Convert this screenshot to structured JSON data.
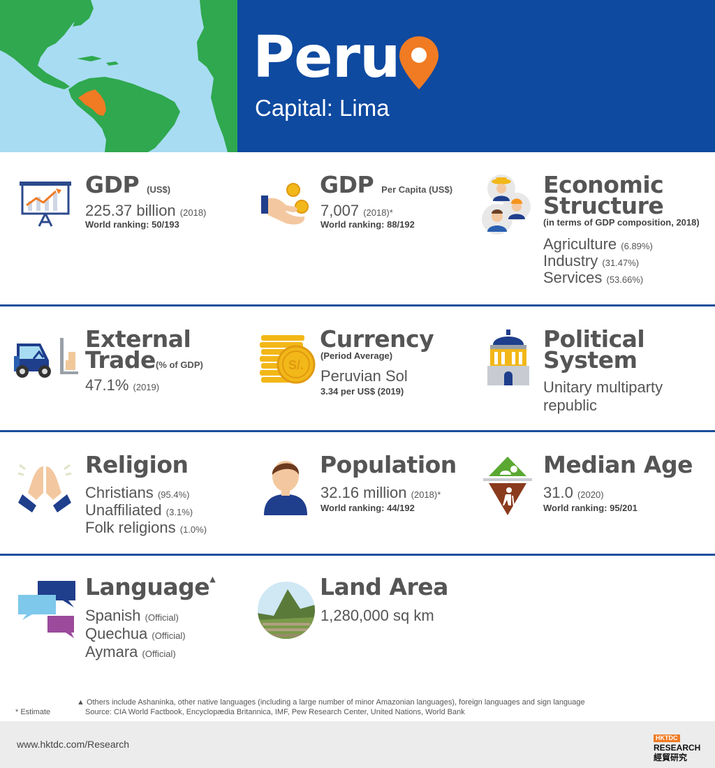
{
  "header": {
    "title": "Peru",
    "capital": "Capital: Lima"
  },
  "colors": {
    "blue": "#0e4aa0",
    "orange": "#f07b23",
    "land": "#2fa84f",
    "sea": "#a8dcf2"
  },
  "gdp": {
    "title": "GDP",
    "unit": "(US$)",
    "value": "225.37 billion",
    "year": "(2018)",
    "ranking": "World ranking: 50/193"
  },
  "gdp_pc": {
    "title": "GDP",
    "unit": "Per Capita (US$)",
    "value": "7,007",
    "year": "(2018)*",
    "ranking": "World ranking: 88/192"
  },
  "econ": {
    "title1": "Economic",
    "title2": "Structure",
    "sub": "(in terms of GDP composition, 2018)",
    "items": [
      {
        "label": "Agriculture",
        "pct": "(6.89%)"
      },
      {
        "label": "Industry",
        "pct": "(31.47%)"
      },
      {
        "label": "Services",
        "pct": "(53.66%)"
      }
    ]
  },
  "trade": {
    "title1": "External",
    "title2": "Trade",
    "unit": "(% of GDP)",
    "value": "47.1%",
    "year": "(2019)"
  },
  "currency": {
    "title": "Currency",
    "sub": "(Period Average)",
    "value": "Peruvian Sol",
    "rate": "3.34 per US$ (2019)",
    "coin_label": "S/."
  },
  "political": {
    "title1": "Political",
    "title2": "System",
    "value1": "Unitary multiparty",
    "value2": "republic"
  },
  "religion": {
    "title": "Religion",
    "items": [
      {
        "label": "Christians",
        "pct": "(95.4%)"
      },
      {
        "label": "Unaffiliated",
        "pct": "(3.1%)"
      },
      {
        "label": "Folk religions",
        "pct": "(1.0%)"
      }
    ]
  },
  "population": {
    "title": "Population",
    "value": "32.16 million",
    "year": "(2018)*",
    "ranking": "World ranking: 44/192"
  },
  "median_age": {
    "title": "Median Age",
    "value": "31.0",
    "year": "(2020)",
    "ranking": "World ranking: 95/201"
  },
  "language": {
    "title": "Language",
    "mark": "▲",
    "items": [
      {
        "label": "Spanish",
        "note": "(Official)"
      },
      {
        "label": "Quechua",
        "note": "(Official)"
      },
      {
        "label": "Aymara",
        "note": "(Official)"
      }
    ]
  },
  "land": {
    "title": "Land Area",
    "value": "1,280,000 sq km"
  },
  "notes": {
    "estimate": "* Estimate",
    "languages": "▲ Others include Ashaninka, other native languages (including a large number of minor Amazonian languages), foreign languages and sign language",
    "source": "Source: CIA World Factbook, Encyclopædia Britannica, IMF, Pew Research Center, United Nations, World Bank"
  },
  "footer": {
    "url": "www.hktdc.com/Research",
    "logo_top": "HKTDC",
    "logo_mid": "RESEARCH",
    "logo_bottom": "經貿研究"
  }
}
